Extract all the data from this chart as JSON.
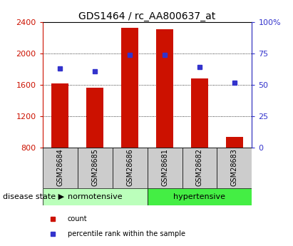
{
  "title": "GDS1464 / rc_AA800637_at",
  "samples": [
    "GSM28684",
    "GSM28685",
    "GSM28686",
    "GSM28681",
    "GSM28682",
    "GSM28683"
  ],
  "count_values": [
    1620,
    1560,
    2330,
    2310,
    1680,
    940
  ],
  "percentile_values": [
    63,
    61,
    74,
    74,
    64,
    52
  ],
  "ymin": 800,
  "ymax": 2400,
  "yright_min": 0,
  "yright_max": 100,
  "yticks_left": [
    800,
    1200,
    1600,
    2000,
    2400
  ],
  "yticks_right": [
    0,
    25,
    50,
    75,
    100
  ],
  "ytick_labels_right": [
    "0",
    "25",
    "50",
    "75",
    "100%"
  ],
  "bar_color": "#cc1100",
  "blue_color": "#3333cc",
  "group_labels": [
    "normotensive",
    "hypertensive"
  ],
  "group_colors": [
    "#bbffbb",
    "#44ee44"
  ],
  "group_bg_color": "#cccccc",
  "disease_state_label": "disease state",
  "legend_count_label": "count",
  "legend_percentile_label": "percentile rank within the sample",
  "title_fontsize": 10,
  "tick_fontsize": 8,
  "sample_fontsize": 7,
  "group_fontsize": 8,
  "legend_fontsize": 7
}
